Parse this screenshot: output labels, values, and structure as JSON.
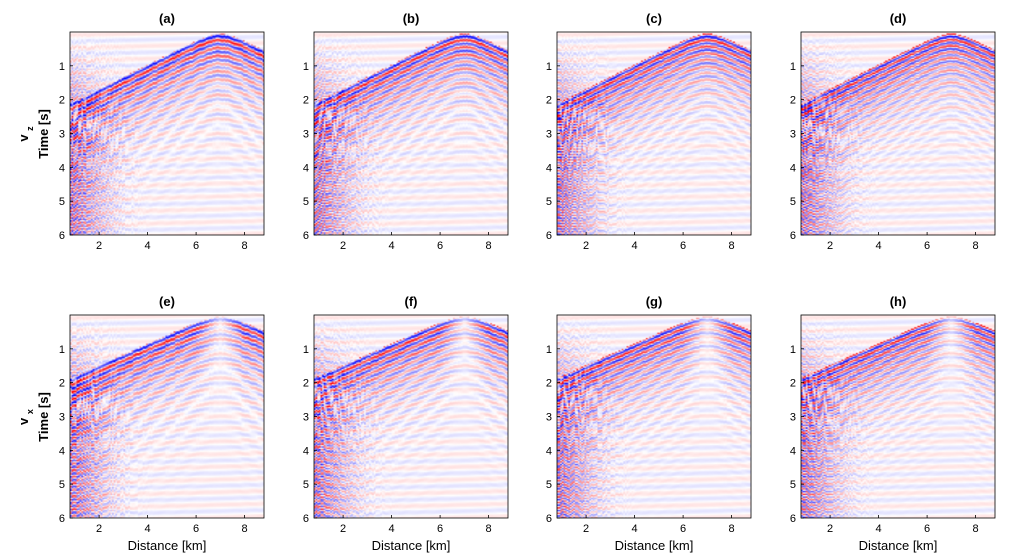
{
  "chart_data": {
    "type": "heatmap",
    "colormap": {
      "negative": "#0000ff",
      "zero": "#ffffff",
      "positive": "#ff0000"
    },
    "row_labels": [
      "v_z",
      "v_x"
    ],
    "xlabel": "Distance [km]",
    "ylabel": "Time [s]",
    "xlim": [
      0.8,
      8.8
    ],
    "ylim": [
      0,
      6
    ],
    "y_reversed": true,
    "xticks": [
      2,
      4,
      6,
      8
    ],
    "yticks": [
      1,
      2,
      3,
      4,
      5,
      6
    ],
    "panels": [
      {
        "title": "(a)",
        "component": "v_z",
        "apex_km": 7.0,
        "apex_s": 0.2
      },
      {
        "title": "(b)",
        "component": "v_z",
        "apex_km": 7.0,
        "apex_s": 0.2
      },
      {
        "title": "(c)",
        "component": "v_z",
        "apex_km": 7.0,
        "apex_s": 0.2
      },
      {
        "title": "(d)",
        "component": "v_z",
        "apex_km": 7.0,
        "apex_s": 0.2
      },
      {
        "title": "(e)",
        "component": "v_x",
        "apex_km": 7.0,
        "apex_s": 0.2
      },
      {
        "title": "(f)",
        "component": "v_x",
        "apex_km": 7.0,
        "apex_s": 0.2
      },
      {
        "title": "(g)",
        "component": "v_x",
        "apex_km": 7.0,
        "apex_s": 0.2
      },
      {
        "title": "(h)",
        "component": "v_x",
        "apex_km": 7.0,
        "apex_s": 0.2
      }
    ]
  }
}
